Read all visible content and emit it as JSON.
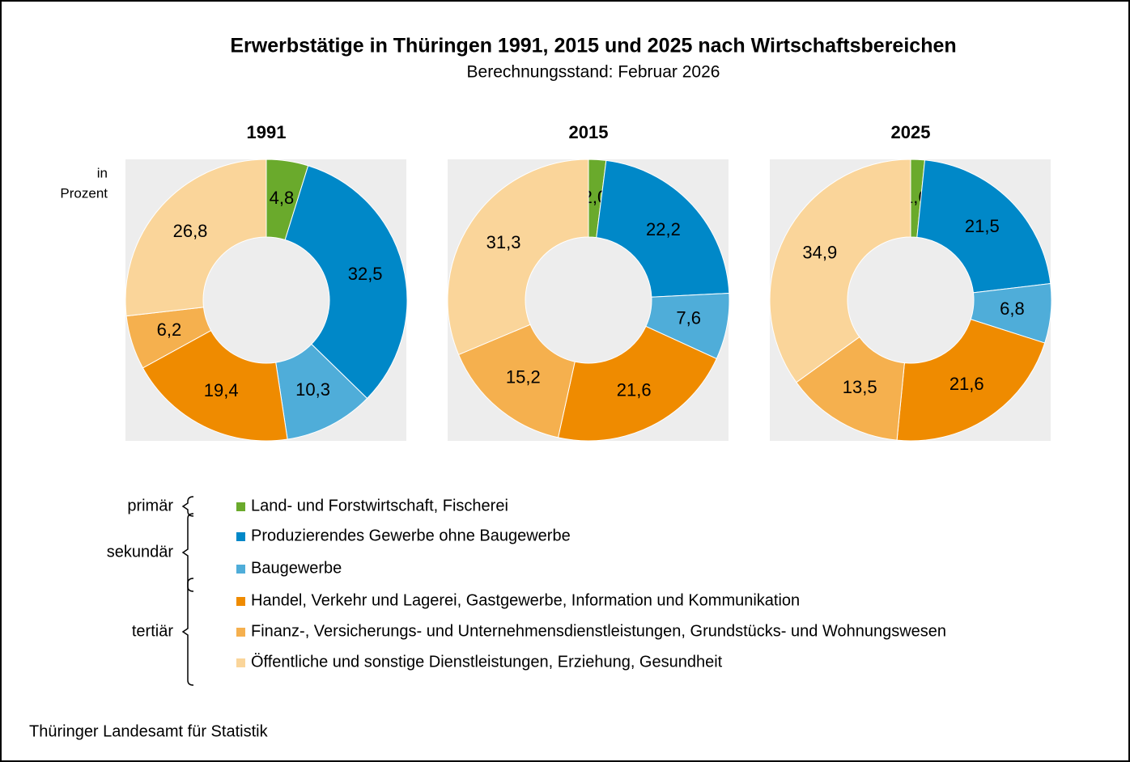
{
  "title": "Erwerbstätige in Thüringen 1991, 2015 und 2025 nach Wirtschaftsbereichen",
  "subtitle": "Berechnungsstand: Februar 2026",
  "unit": [
    "in",
    "Prozent"
  ],
  "source": "Thüringer Landesamt für Statistik",
  "groups": [
    {
      "label": "primär",
      "categories": [
        "Land- und Forstwirtschaft, Fischerei"
      ]
    },
    {
      "label": "sekundär",
      "categories": [
        "Produzierendes Gewerbe ohne Baugewerbe",
        "Baugewerbe"
      ]
    },
    {
      "label": "tertiär",
      "categories": [
        "Handel, Verkehr und Lagerei, Gastgewerbe, Information und Kommunikation",
        "Finanz-, Versicherungs- und Unternehmensdienstleistungen, Grundstücks- und Wohnungswesen",
        "Öffentliche und sonstige Dienstleistungen, Erziehung, Gesundheit"
      ]
    }
  ],
  "colors": [
    "#6aaa2c",
    "#0088c8",
    "#4fadd9",
    "#ef8b00",
    "#f5b04e",
    "#fad59a"
  ],
  "label_colors": [
    "#ffffff",
    "#ffffff",
    "#ffffff",
    "#000000",
    "#000000",
    "#000000"
  ],
  "chart_data": [
    {
      "type": "donut",
      "title": "1991",
      "values": [
        4.8,
        32.5,
        10.3,
        19.4,
        6.2,
        26.8
      ],
      "value_labels": [
        "4,8",
        "32,5",
        "10,3",
        "19,4",
        "6,2",
        "26,8"
      ]
    },
    {
      "type": "donut",
      "title": "2015",
      "values": [
        2.0,
        22.2,
        7.6,
        21.6,
        15.2,
        31.3
      ],
      "value_labels": [
        "2,0",
        "22,2",
        "7,6",
        "21,6",
        "15,2",
        "31,3"
      ]
    },
    {
      "type": "donut",
      "title": "2025",
      "values": [
        1.6,
        21.5,
        6.8,
        21.6,
        13.5,
        34.9
      ],
      "value_labels": [
        "1,6",
        "21,5",
        "6,8",
        "21,6",
        "13,5",
        "34,9"
      ]
    }
  ]
}
